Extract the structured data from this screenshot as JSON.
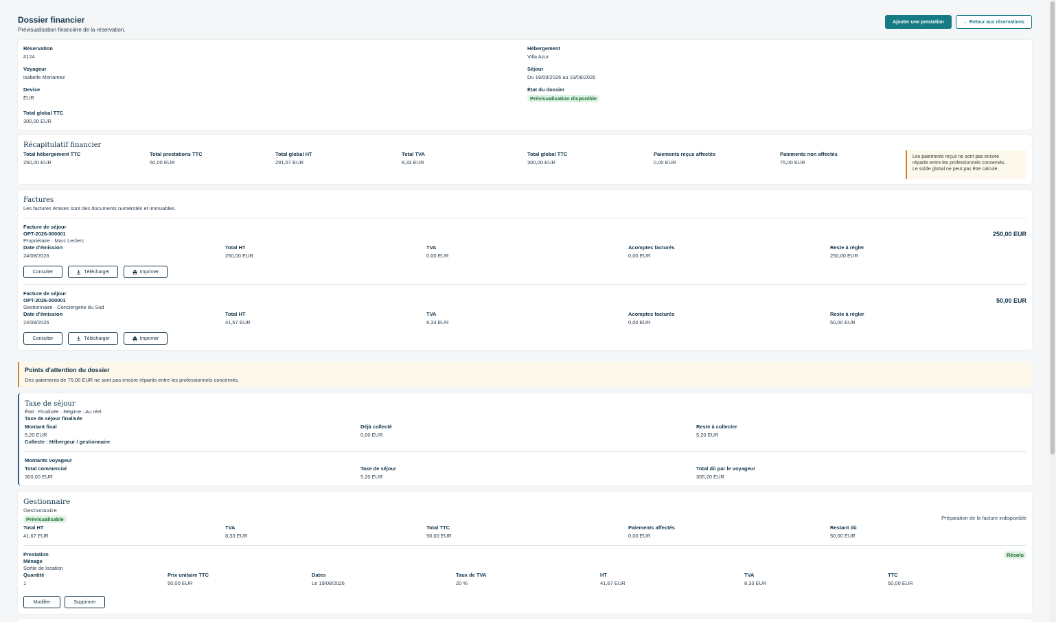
{
  "header": {
    "title": "Dossier financier",
    "subtitle": "Prévisualisation financière de la réservation.",
    "add_button": "Ajouter une prestation",
    "back_button": "Retour aux réservations"
  },
  "info": {
    "reservation_label": "Réservation",
    "reservation_value": "#124",
    "hebergement_label": "Hébergement",
    "hebergement_value": "Villa Azur",
    "voyageur_label": "Voyageur",
    "voyageur_value": "isabelle Moriamez",
    "sejour_label": "Séjour",
    "sejour_value": "Du 18/08/2026 au 19/08/2026",
    "devise_label": "Devise",
    "devise_value": "EUR",
    "etat_label": "État du dossier",
    "etat_value": "Prévisualisation disponible",
    "total_label": "Total global TTC",
    "total_value": "300,00 EUR"
  },
  "recap": {
    "title": "Récapitulatif financier",
    "items": [
      {
        "label": "Total hébergement TTC",
        "value": "250,00 EUR"
      },
      {
        "label": "Total prestations TTC",
        "value": "50,00 EUR"
      },
      {
        "label": "Total global HT",
        "value": "291,67 EUR"
      },
      {
        "label": "Total TVA",
        "value": "8,33 EUR"
      },
      {
        "label": "Total global TTC",
        "value": "300,00 EUR"
      },
      {
        "label": "Paiements reçus affectés",
        "value": "0,00 EUR"
      },
      {
        "label": "Paiements non affectés",
        "value": "75,00 EUR"
      }
    ],
    "note_line1": "Les paiements reçus ne sont pas encore",
    "note_line2": "répartis entre les professionnels concernés.",
    "note_line3": "Le solde global ne peut pas être calculé."
  },
  "factures": {
    "title": "Factures",
    "subtitle": "Les factures émises sont des documents numérotés et immuables.",
    "list": [
      {
        "type": "Facture de séjour",
        "number": "OPT-2026-000001",
        "owner": "Propriétaire · Marc Leclerc",
        "amount": "250,00 EUR",
        "date_label": "Date d'émission",
        "date_value": "24/08/2026",
        "ht_label": "Total HT",
        "ht_value": "250,00 EUR",
        "tva_label": "TVA",
        "tva_value": "0,00 EUR",
        "acomptes_label": "Acomptes facturés",
        "acomptes_value": "0,00 EUR",
        "reste_label": "Reste à régler",
        "reste_value": "250,00 EUR",
        "btn_consulter": "Consulter",
        "btn_telecharger": "Télécharger",
        "btn_imprimer": "Imprimer"
      },
      {
        "type": "Facture de séjour",
        "number": "OPT-2026-000001",
        "owner": "Gestionnaire · Conciergerie du Sud",
        "amount": "50,00 EUR",
        "date_label": "Date d'émission",
        "date_value": "24/08/2026",
        "ht_label": "Total HT",
        "ht_value": "41,67 EUR",
        "tva_label": "TVA",
        "tva_value": "8,33 EUR",
        "acomptes_label": "Acomptes facturés",
        "acomptes_value": "0,00 EUR",
        "reste_label": "Reste à régler",
        "reste_value": "50,00 EUR",
        "btn_consulter": "Consulter",
        "btn_telecharger": "Télécharger",
        "btn_imprimer": "Imprimer"
      }
    ]
  },
  "attention": {
    "title": "Points d'attention du dossier",
    "text": "Des paiements de 75,00 EUR ne sont pas encore répartis entre les professionnels concernés."
  },
  "taxe": {
    "title": "Taxe de séjour",
    "state": "État : Finalisée · Régime : Au réel",
    "status": "Taxe de séjour finalisée",
    "montant_label": "Montant final",
    "montant_value": "5,20 EUR",
    "collecte_label": "Déjà collecté",
    "collecte_value": "0,00 EUR",
    "reste_label": "Reste à collecter",
    "reste_value": "5,20 EUR",
    "collecte_by": "Collecte : Hébergeur / gestionnaire",
    "montants_title": "Montants voyageur",
    "commercial_label": "Total commercial",
    "commercial_value": "300,00 EUR",
    "taxe_label": "Taxe de séjour",
    "taxe_value": "5,20 EUR",
    "du_label": "Total dû par le voyageur",
    "du_value": "305,20 EUR"
  },
  "gestionnaire": {
    "title": "Gestionnaire",
    "subtitle": "Gestionnaire",
    "badge": "Prévisualisable",
    "right_note": "Préparation de la facture indisponible",
    "totals": [
      {
        "label": "Total HT",
        "value": "41,67 EUR"
      },
      {
        "label": "TVA",
        "value": "8,33 EUR"
      },
      {
        "label": "Total TTC",
        "value": "50,00 EUR"
      },
      {
        "label": "Paiements affectés",
        "value": "0,00 EUR"
      },
      {
        "label": "Restant dû",
        "value": "50,00 EUR"
      }
    ],
    "prestation_label": "Prestation",
    "prestation_name": "Ménage",
    "prestation_desc": "Sortie de location",
    "resolved_badge": "Résolu",
    "columns": [
      {
        "label": "Quantité",
        "value": "1"
      },
      {
        "label": "Prix unitaire TTC",
        "value": "50,00 EUR"
      },
      {
        "label": "Dates",
        "value": "Le 19/08/2026"
      },
      {
        "label": "Taux de TVA",
        "value": "20 %"
      },
      {
        "label": "HT",
        "value": "41,67 EUR"
      },
      {
        "label": "TVA",
        "value": "8,33 EUR"
      },
      {
        "label": "TTC",
        "value": "50,00 EUR"
      }
    ],
    "btn_modifier": "Modifier",
    "btn_supprimer": "Supprimer"
  }
}
